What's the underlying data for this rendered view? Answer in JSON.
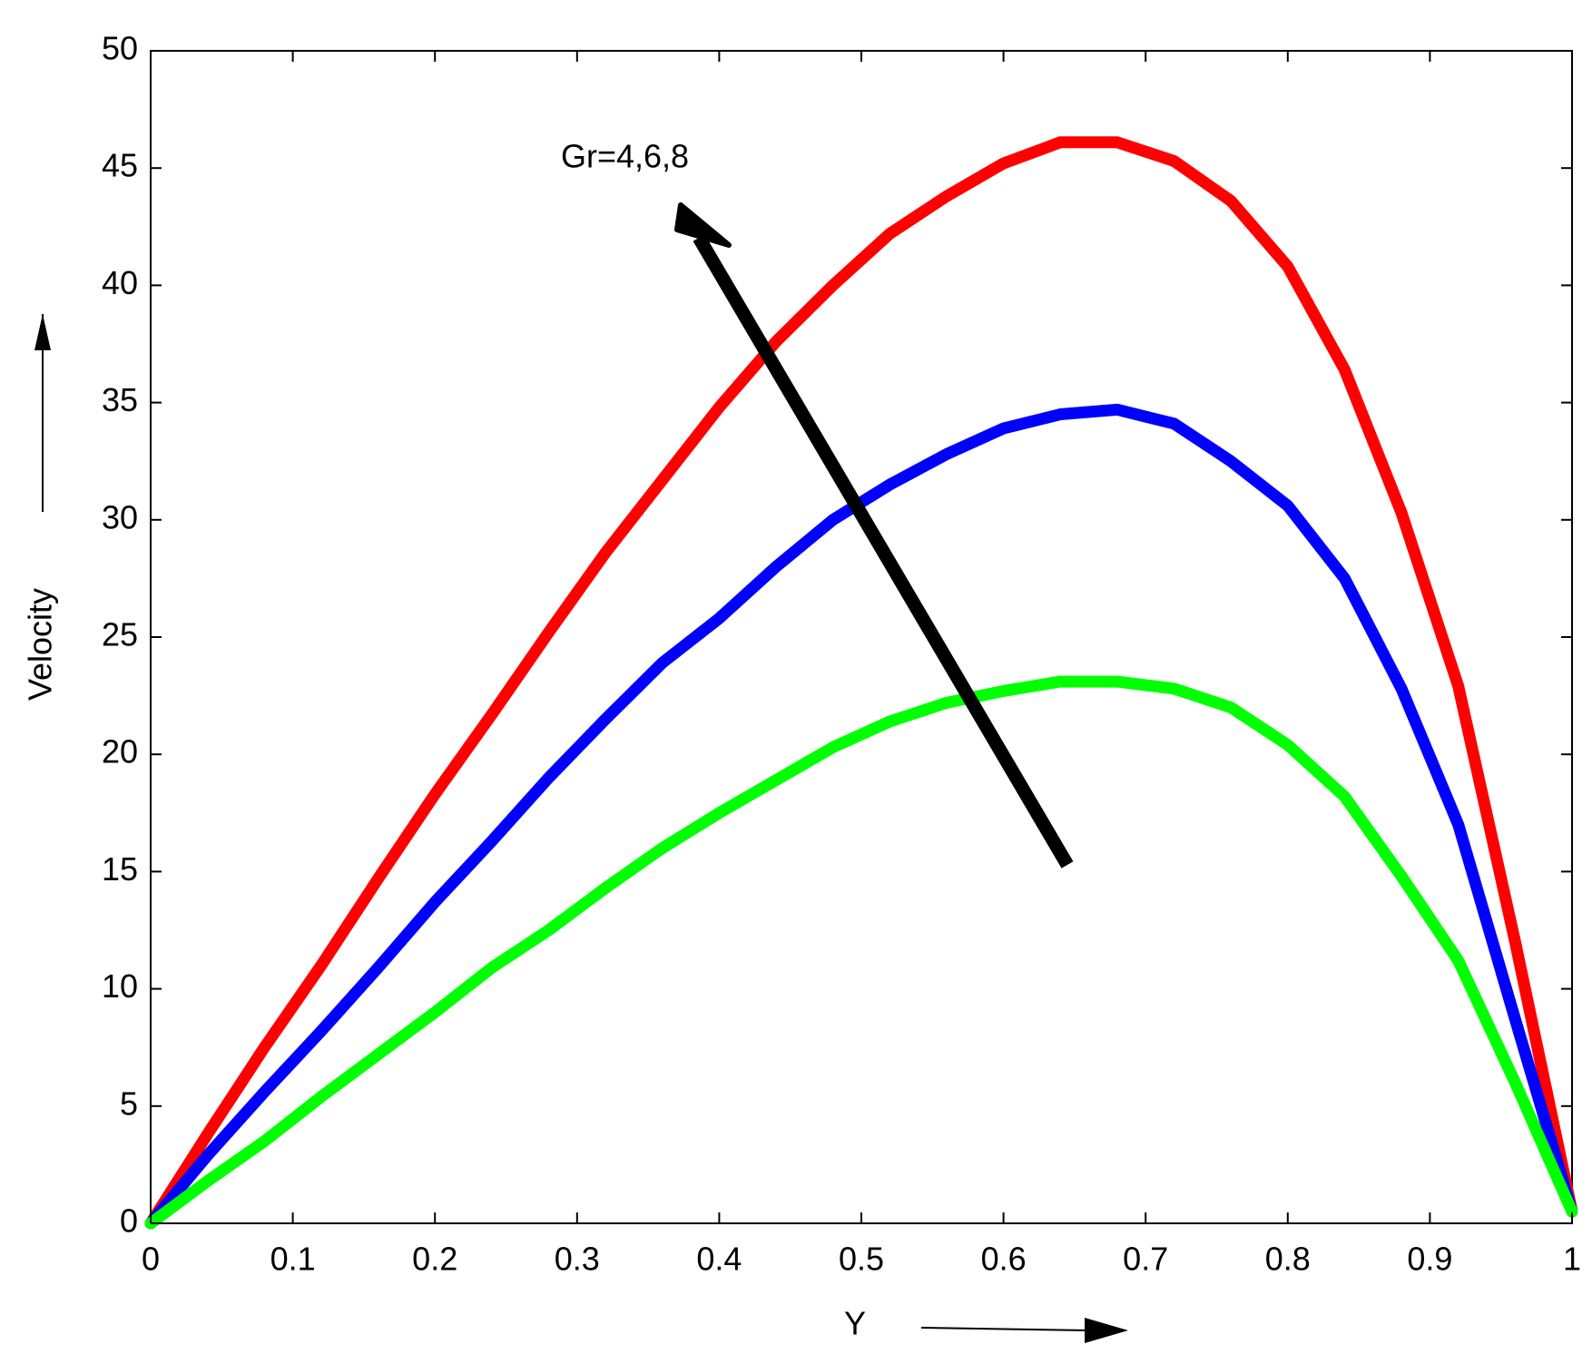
{
  "chart_data": {
    "type": "line",
    "xlabel": "Y",
    "ylabel": "Velocity",
    "annotation": "Gr=4,6,8",
    "x": [
      0,
      0.04,
      0.08,
      0.12,
      0.16,
      0.2,
      0.24,
      0.28,
      0.32,
      0.36,
      0.4,
      0.44,
      0.48,
      0.52,
      0.56,
      0.6,
      0.64,
      0.68,
      0.72,
      0.76,
      0.8,
      0.84,
      0.88,
      0.92,
      0.96,
      1
    ],
    "series": [
      {
        "color": "#ff0000",
        "values": [
          0,
          3.8,
          7.5,
          11,
          14.7,
          18.3,
          21.7,
          25.2,
          28.6,
          31.7,
          34.8,
          37.6,
          40,
          42.2,
          43.8,
          45.2,
          46.1,
          46.1,
          45.3,
          43.6,
          40.8,
          36.4,
          30.3,
          22.9,
          12,
          0.5
        ]
      },
      {
        "color": "#0000ff",
        "values": [
          0,
          2.9,
          5.6,
          8.2,
          10.9,
          13.7,
          16.3,
          19,
          21.5,
          23.9,
          25.8,
          28,
          30,
          31.5,
          32.8,
          33.9,
          34.5,
          34.7,
          34.1,
          32.5,
          30.6,
          27.5,
          22.8,
          17,
          8.7,
          0.5
        ]
      },
      {
        "color": "#00ff00",
        "values": [
          0,
          1.8,
          3.5,
          5.4,
          7.2,
          9,
          10.9,
          12.5,
          14.3,
          16,
          17.5,
          18.9,
          20.3,
          21.4,
          22.2,
          22.7,
          23.1,
          23.1,
          22.8,
          22,
          20.4,
          18.2,
          14.8,
          11.2,
          6,
          0.5
        ]
      }
    ],
    "xlim": [
      0,
      1
    ],
    "xticks": [
      0,
      0.1,
      0.2,
      0.3,
      0.4,
      0.5,
      0.6,
      0.7,
      0.8,
      0.9,
      1
    ],
    "ylim": [
      0,
      50
    ],
    "yticks": [
      0,
      5,
      10,
      15,
      20,
      25,
      30,
      35,
      40,
      45,
      50
    ]
  }
}
